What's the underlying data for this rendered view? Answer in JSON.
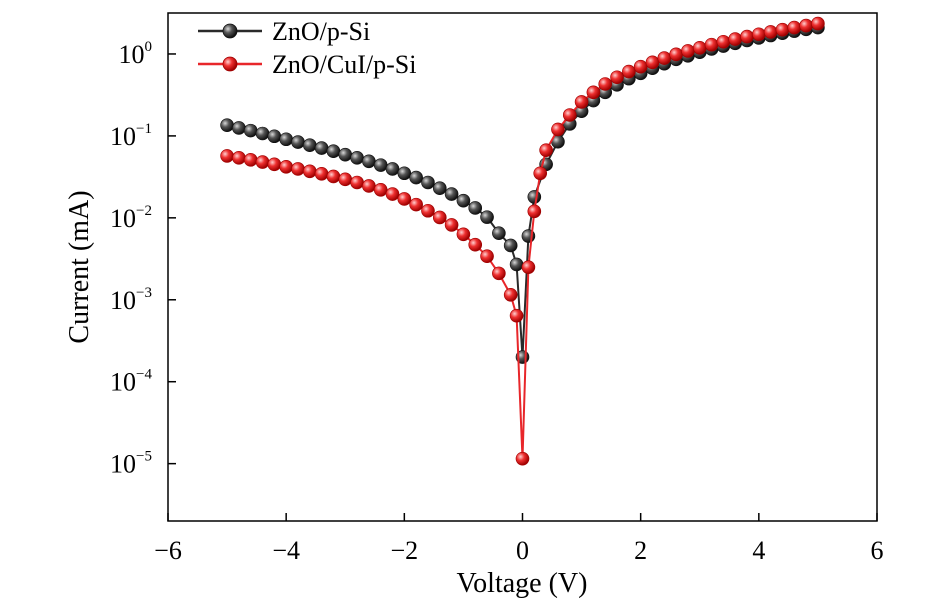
{
  "chart_data": {
    "type": "scatter",
    "title": "",
    "xlabel": "Voltage (V)",
    "ylabel": "Current (mA)",
    "xlim": [
      -6,
      6
    ],
    "ylim_log10": [
      -5.7,
      0.5
    ],
    "y_scale": "log",
    "grid": false,
    "legend_position": "top-left",
    "x_ticks": [
      {
        "value": -6,
        "label": "−6"
      },
      {
        "value": -4,
        "label": "−4"
      },
      {
        "value": -2,
        "label": "−2"
      },
      {
        "value": 0,
        "label": "0"
      },
      {
        "value": 2,
        "label": "2"
      },
      {
        "value": 4,
        "label": "4"
      },
      {
        "value": 6,
        "label": "6"
      }
    ],
    "y_ticks": [
      {
        "exp": 0,
        "base": "10",
        "sup": "0"
      },
      {
        "exp": -1,
        "base": "10",
        "sup": "−1"
      },
      {
        "exp": -2,
        "base": "10",
        "sup": "−2"
      },
      {
        "exp": -3,
        "base": "10",
        "sup": "−3"
      },
      {
        "exp": -4,
        "base": "10",
        "sup": "−4"
      },
      {
        "exp": -5,
        "base": "10",
        "sup": "−5"
      }
    ],
    "series": [
      {
        "name": "ZnO/p-Si",
        "color": "#2a2a2a",
        "x": [
          -5.0,
          -4.8,
          -4.6,
          -4.4,
          -4.2,
          -4.0,
          -3.8,
          -3.6,
          -3.4,
          -3.2,
          -3.0,
          -2.8,
          -2.6,
          -2.4,
          -2.2,
          -2.0,
          -1.8,
          -1.6,
          -1.4,
          -1.2,
          -1.0,
          -0.8,
          -0.6,
          -0.4,
          -0.2,
          -0.1,
          0.0,
          0.1,
          0.2,
          0.4,
          0.6,
          0.8,
          1.0,
          1.2,
          1.4,
          1.6,
          1.8,
          2.0,
          2.2,
          2.4,
          2.6,
          2.8,
          3.0,
          3.2,
          3.4,
          3.6,
          3.8,
          4.0,
          4.2,
          4.4,
          4.6,
          4.8,
          5.0
        ],
        "y": [
          0.135,
          0.125,
          0.116,
          0.107,
          0.099,
          0.091,
          0.084,
          0.077,
          0.071,
          0.065,
          0.059,
          0.054,
          0.049,
          0.044,
          0.0395,
          0.035,
          0.031,
          0.027,
          0.023,
          0.0195,
          0.0162,
          0.0132,
          0.0102,
          0.0065,
          0.0046,
          0.0027,
          0.0002,
          0.006,
          0.018,
          0.045,
          0.085,
          0.14,
          0.2,
          0.27,
          0.34,
          0.42,
          0.5,
          0.58,
          0.67,
          0.76,
          0.86,
          0.95,
          1.05,
          1.15,
          1.25,
          1.35,
          1.46,
          1.57,
          1.68,
          1.79,
          1.9,
          2.0,
          2.1
        ]
      },
      {
        "name": "ZnO/CuI/p-Si",
        "color": "#e8262a",
        "x": [
          -5.0,
          -4.8,
          -4.6,
          -4.4,
          -4.2,
          -4.0,
          -3.8,
          -3.6,
          -3.4,
          -3.2,
          -3.0,
          -2.8,
          -2.6,
          -2.4,
          -2.2,
          -2.0,
          -1.8,
          -1.6,
          -1.4,
          -1.2,
          -1.0,
          -0.8,
          -0.6,
          -0.4,
          -0.2,
          -0.1,
          0.0,
          0.1,
          0.2,
          0.3,
          0.4,
          0.6,
          0.8,
          1.0,
          1.2,
          1.4,
          1.6,
          1.8,
          2.0,
          2.2,
          2.4,
          2.6,
          2.8,
          3.0,
          3.2,
          3.4,
          3.6,
          3.8,
          4.0,
          4.2,
          4.4,
          4.6,
          4.8,
          5.0
        ],
        "y": [
          0.057,
          0.054,
          0.051,
          0.048,
          0.045,
          0.042,
          0.0395,
          0.037,
          0.0345,
          0.032,
          0.0295,
          0.027,
          0.0245,
          0.022,
          0.0195,
          0.017,
          0.0145,
          0.0122,
          0.0101,
          0.0082,
          0.0063,
          0.0047,
          0.0034,
          0.0021,
          0.00115,
          0.00064,
          1.15e-05,
          0.0025,
          0.012,
          0.035,
          0.067,
          0.12,
          0.18,
          0.26,
          0.34,
          0.43,
          0.52,
          0.61,
          0.7,
          0.79,
          0.89,
          0.99,
          1.09,
          1.19,
          1.3,
          1.41,
          1.52,
          1.63,
          1.74,
          1.86,
          1.98,
          2.1,
          2.22,
          2.35
        ]
      }
    ]
  }
}
